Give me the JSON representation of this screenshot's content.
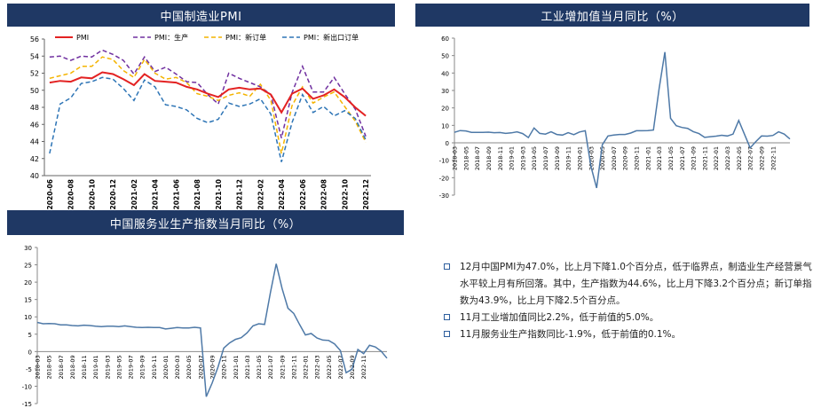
{
  "panels": {
    "pmi_title": "中国制造业PMI",
    "ip_title": "工业增加值当月同比（%）",
    "svc_title": "中国服务业生产指数当月同比（%）"
  },
  "notes": [
    "12月中国PMI为47.0%，比上月下降1.0个百分点，低于临界点，制造业生产经营景气水平较上月有所回落。其中，生产指数为44.6%，比上月下降3.2个百分点；新订单指数为43.9%，比上月下降2.5个百分点。",
    "11月工业增加值同比2.2%，低于前值的5.0%。",
    "11月服务业生产指数同比-1.9%，低于前值的0.1%。"
  ],
  "chart_data": [
    {
      "type": "line",
      "title": "中国制造业PMI",
      "categories": [
        "2020-06",
        "2020-07",
        "2020-08",
        "2020-09",
        "2020-10",
        "2020-11",
        "2020-12",
        "2021-01",
        "2021-02",
        "2021-03",
        "2021-04",
        "2021-05",
        "2021-06",
        "2021-07",
        "2021-08",
        "2021-09",
        "2021-10",
        "2021-11",
        "2021-12",
        "2022-01",
        "2022-02",
        "2022-03",
        "2022-04",
        "2022-05",
        "2022-06",
        "2022-07",
        "2022-08",
        "2022-09",
        "2022-10",
        "2022-11",
        "2022-12"
      ],
      "tick_labels": [
        "2020-06",
        "2020-08",
        "2020-10",
        "2020-12",
        "2021-02",
        "2021-04",
        "2021-06",
        "2021-08",
        "2021-10",
        "2021-12",
        "2022-02",
        "2022-04",
        "2022-06",
        "2022-08",
        "2022-10",
        "2022-12"
      ],
      "ylim": [
        40,
        56
      ],
      "yticks": [
        40,
        42,
        44,
        46,
        48,
        50,
        52,
        54,
        56
      ],
      "legend": "top",
      "series": [
        {
          "name": "PMI",
          "color": "#e32222",
          "dash": "solid",
          "values": [
            50.9,
            51.1,
            51.0,
            51.5,
            51.4,
            52.1,
            51.9,
            51.3,
            50.6,
            51.9,
            51.1,
            51.0,
            50.9,
            50.4,
            50.1,
            49.6,
            49.2,
            50.1,
            50.3,
            50.1,
            50.2,
            49.5,
            47.4,
            49.6,
            50.2,
            49.0,
            49.4,
            50.1,
            49.2,
            48.0,
            47.0
          ]
        },
        {
          "name": "PMI：生产",
          "color": "#7030a0",
          "dash": "5,3",
          "values": [
            53.9,
            54.0,
            53.5,
            54.0,
            53.9,
            54.7,
            54.2,
            53.5,
            51.9,
            53.9,
            52.2,
            52.7,
            51.9,
            51.0,
            50.9,
            49.5,
            48.4,
            52.0,
            51.4,
            50.9,
            50.4,
            49.5,
            44.4,
            49.7,
            52.8,
            49.8,
            49.8,
            51.5,
            49.6,
            47.8,
            44.6
          ]
        },
        {
          "name": "PMI：新订单",
          "color": "#f4b400",
          "dash": "5,3",
          "values": [
            51.4,
            51.7,
            52.0,
            52.8,
            52.8,
            53.9,
            53.6,
            52.3,
            51.5,
            53.6,
            52.0,
            51.3,
            51.5,
            50.9,
            49.6,
            49.3,
            48.8,
            49.4,
            49.7,
            49.3,
            50.7,
            48.8,
            42.6,
            48.2,
            50.4,
            48.5,
            49.2,
            49.8,
            48.1,
            46.4,
            43.9
          ]
        },
        {
          "name": "PMI：新出口订单",
          "color": "#2e75b6",
          "dash": "5,3",
          "values": [
            42.6,
            48.4,
            49.1,
            50.8,
            51.0,
            51.5,
            51.3,
            50.2,
            48.8,
            51.2,
            50.4,
            48.3,
            48.1,
            47.7,
            46.7,
            46.2,
            46.6,
            48.5,
            48.1,
            48.4,
            49.0,
            47.2,
            41.6,
            46.2,
            49.5,
            47.4,
            48.1,
            47.0,
            47.6,
            46.7,
            44.2
          ]
        }
      ]
    },
    {
      "type": "line",
      "title": "工业增加值当月同比（%）",
      "series_color": "#4e79a7",
      "x_start": "2018-03",
      "tick_labels": [
        "2018-03",
        "2018-05",
        "2018-07",
        "2018-09",
        "2018-11",
        "2019-01",
        "2019-03",
        "2019-05",
        "2019-07",
        "2019-09",
        "2019-11",
        "2020-01",
        "2020-03",
        "2020-05",
        "2020-07",
        "2020-09",
        "2020-11",
        "2021-01",
        "2021-03",
        "2021-05",
        "2021-07",
        "2021-09",
        "2021-11",
        "2022-01",
        "2022-03",
        "2022-05",
        "2022-07",
        "2022-09",
        "2022-11"
      ],
      "ylim": [
        -30,
        60
      ],
      "yticks": [
        -30,
        -20,
        -10,
        0,
        10,
        20,
        30,
        40,
        50,
        60
      ],
      "values": [
        6.0,
        7.0,
        6.8,
        6.0,
        6.0,
        6.0,
        6.1,
        5.8,
        5.9,
        5.4,
        5.7,
        6.3,
        5.3,
        3.0,
        8.5,
        5.4,
        5.0,
        6.3,
        4.8,
        4.4,
        5.8,
        4.7,
        6.2,
        6.9,
        -13.5,
        -25.9,
        -1.1,
        3.9,
        4.4,
        4.8,
        4.8,
        5.6,
        6.9,
        6.9,
        7.0,
        7.3,
        31.0,
        52.0,
        14.1,
        9.8,
        8.8,
        8.3,
        6.4,
        5.3,
        3.1,
        3.5,
        3.8,
        4.3,
        3.9,
        5.0,
        12.8,
        5.0,
        -2.9,
        0.7,
        3.9,
        3.8,
        4.2,
        6.3,
        5.0,
        2.2
      ]
    },
    {
      "type": "line",
      "title": "中国服务业生产指数当月同比（%）",
      "series_color": "#4e79a7",
      "x_start": "2018-03",
      "tick_labels": [
        "2018-03",
        "2018-05",
        "2018-07",
        "2018-09",
        "2018-11",
        "2019-01",
        "2019-03",
        "2019-05",
        "2019-07",
        "2019-09",
        "2019-11",
        "2020-01",
        "2020-03",
        "2020-05",
        "2020-07",
        "2020-09",
        "2020-11",
        "2021-01",
        "2021-03",
        "2021-05",
        "2021-07",
        "2021-09",
        "2021-11",
        "2022-01",
        "2022-03",
        "2022-05",
        "2022-07",
        "2022-09",
        "2022-11"
      ],
      "ylim": [
        -15,
        30
      ],
      "yticks": [
        -15,
        -10,
        -5,
        0,
        5,
        10,
        15,
        20,
        25,
        30
      ],
      "values": [
        8.4,
        8.0,
        8.1,
        8.0,
        7.7,
        7.7,
        7.5,
        7.4,
        7.6,
        7.5,
        7.3,
        7.2,
        7.3,
        7.3,
        7.2,
        7.4,
        7.2,
        7.0,
        6.9,
        7.0,
        6.9,
        6.9,
        6.5,
        6.7,
        6.9,
        6.8,
        6.8,
        7.0,
        6.8,
        -13.0,
        -9.1,
        -4.5,
        1.0,
        2.5,
        3.5,
        4.0,
        5.4,
        7.4,
        8.0,
        7.8,
        17.0,
        25.3,
        18.2,
        12.5,
        11.0,
        7.8,
        4.8,
        5.2,
        3.9,
        3.3,
        3.2,
        2.2,
        0.3,
        -6.1,
        -5.1,
        0.6,
        -0.6,
        1.8,
        1.3,
        0.1,
        -1.9
      ]
    }
  ]
}
